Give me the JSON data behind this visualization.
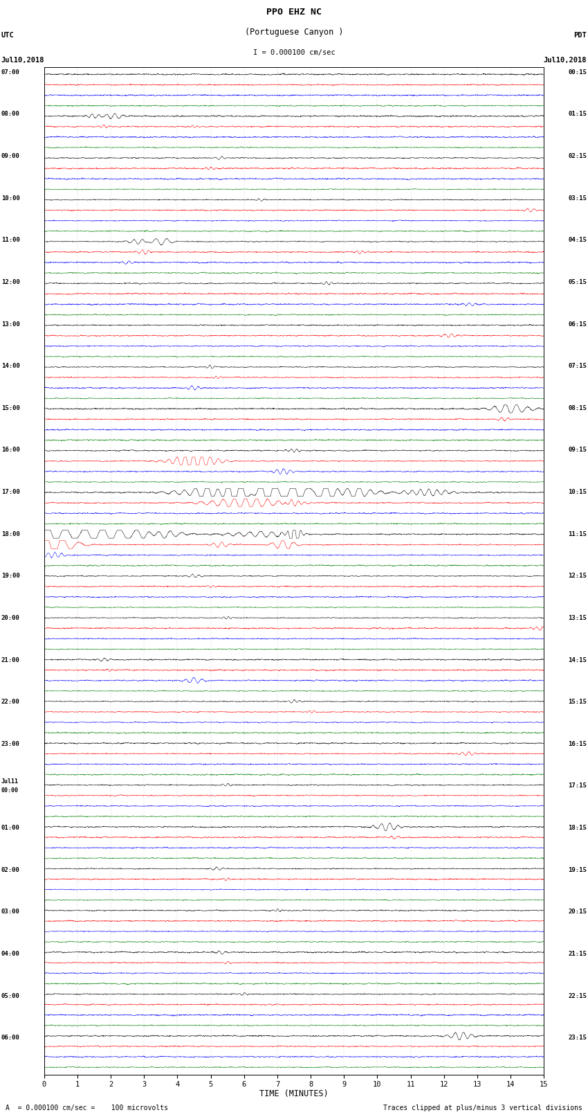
{
  "title_line1": "PPO EHZ NC",
  "title_line2": "(Portuguese Canyon )",
  "title_line3": "I = 0.000100 cm/sec",
  "left_label_line1": "UTC",
  "left_label_line2": "Jul10,2018",
  "right_label_line1": "PDT",
  "right_label_line2": "Jul10,2018",
  "xlabel": "TIME (MINUTES)",
  "footer_left": "A  = 0.000100 cm/sec =    100 microvolts",
  "footer_right": "Traces clipped at plus/minus 3 vertical divisions",
  "xmin": 0,
  "xmax": 15,
  "xticks": [
    0,
    1,
    2,
    3,
    4,
    5,
    6,
    7,
    8,
    9,
    10,
    11,
    12,
    13,
    14,
    15
  ],
  "bg_color": "white",
  "noise_base": 0.032,
  "amplitude_scale": 0.38,
  "seed": 12345,
  "num_rows": 96,
  "colors_cycle": [
    "black",
    "red",
    "blue",
    "green"
  ],
  "left_times": [
    "07:00",
    "",
    "",
    "",
    "08:00",
    "",
    "",
    "",
    "09:00",
    "",
    "",
    "",
    "10:00",
    "",
    "",
    "",
    "11:00",
    "",
    "",
    "",
    "12:00",
    "",
    "",
    "",
    "13:00",
    "",
    "",
    "",
    "14:00",
    "",
    "",
    "",
    "15:00",
    "",
    "",
    "",
    "16:00",
    "",
    "",
    "",
    "17:00",
    "",
    "",
    "",
    "18:00",
    "",
    "",
    "",
    "19:00",
    "",
    "",
    "",
    "20:00",
    "",
    "",
    "",
    "21:00",
    "",
    "",
    "",
    "22:00",
    "",
    "",
    "",
    "23:00",
    "",
    "",
    "",
    "Jul11\n00:00",
    "",
    "",
    "",
    "01:00",
    "",
    "",
    "",
    "02:00",
    "",
    "",
    "",
    "03:00",
    "",
    "",
    "",
    "04:00",
    "",
    "",
    "",
    "05:00",
    "",
    "",
    "",
    "06:00",
    "",
    "",
    ""
  ],
  "right_times": [
    "00:15",
    "",
    "",
    "",
    "01:15",
    "",
    "",
    "",
    "02:15",
    "",
    "",
    "",
    "03:15",
    "",
    "",
    "",
    "04:15",
    "",
    "",
    "",
    "05:15",
    "",
    "",
    "",
    "06:15",
    "",
    "",
    "",
    "07:15",
    "",
    "",
    "",
    "08:15",
    "",
    "",
    "",
    "09:15",
    "",
    "",
    "",
    "10:15",
    "",
    "",
    "",
    "11:15",
    "",
    "",
    "",
    "12:15",
    "",
    "",
    "",
    "13:15",
    "",
    "",
    "",
    "14:15",
    "",
    "",
    "",
    "15:15",
    "",
    "",
    "",
    "16:15",
    "",
    "",
    "",
    "17:15",
    "",
    "",
    "",
    "18:15",
    "",
    "",
    "",
    "19:15",
    "",
    "",
    "",
    "20:15",
    "",
    "",
    "",
    "21:15",
    "",
    "",
    "",
    "22:15",
    "",
    "",
    "",
    "23:15",
    "",
    "",
    ""
  ],
  "events": [
    {
      "row": 4,
      "t": 1.5,
      "amp": 6,
      "dur": 0.3,
      "freq": 5
    },
    {
      "row": 4,
      "t": 2.1,
      "amp": 8,
      "dur": 0.4,
      "freq": 4
    },
    {
      "row": 5,
      "t": 1.8,
      "amp": 5,
      "dur": 0.2,
      "freq": 6
    },
    {
      "row": 5,
      "t": 4.5,
      "amp": 4,
      "dur": 0.15,
      "freq": 7
    },
    {
      "row": 8,
      "t": 5.3,
      "amp": 5,
      "dur": 0.25,
      "freq": 5
    },
    {
      "row": 9,
      "t": 5.0,
      "amp": 4,
      "dur": 0.2,
      "freq": 6
    },
    {
      "row": 12,
      "t": 6.5,
      "amp": 4,
      "dur": 0.2,
      "freq": 5
    },
    {
      "row": 13,
      "t": 14.6,
      "amp": 5,
      "dur": 0.3,
      "freq": 5
    },
    {
      "row": 16,
      "t": 2.8,
      "amp": 7,
      "dur": 0.4,
      "freq": 4
    },
    {
      "row": 16,
      "t": 3.5,
      "amp": 10,
      "dur": 0.5,
      "freq": 3
    },
    {
      "row": 17,
      "t": 3.0,
      "amp": 6,
      "dur": 0.3,
      "freq": 5
    },
    {
      "row": 17,
      "t": 9.5,
      "amp": 5,
      "dur": 0.25,
      "freq": 6
    },
    {
      "row": 18,
      "t": 2.5,
      "amp": 5,
      "dur": 0.3,
      "freq": 5
    },
    {
      "row": 20,
      "t": 8.5,
      "amp": 5,
      "dur": 0.25,
      "freq": 6
    },
    {
      "row": 22,
      "t": 12.8,
      "amp": 5,
      "dur": 0.3,
      "freq": 5
    },
    {
      "row": 25,
      "t": 12.2,
      "amp": 6,
      "dur": 0.35,
      "freq": 5
    },
    {
      "row": 28,
      "t": 5.0,
      "amp": 5,
      "dur": 0.2,
      "freq": 6
    },
    {
      "row": 29,
      "t": 5.2,
      "amp": 4,
      "dur": 0.2,
      "freq": 7
    },
    {
      "row": 30,
      "t": 4.5,
      "amp": 6,
      "dur": 0.3,
      "freq": 5
    },
    {
      "row": 32,
      "t": 14.0,
      "amp": 15,
      "dur": 0.8,
      "freq": 3
    },
    {
      "row": 33,
      "t": 13.8,
      "amp": 5,
      "dur": 0.3,
      "freq": 5
    },
    {
      "row": 36,
      "t": 7.5,
      "amp": 5,
      "dur": 0.3,
      "freq": 6
    },
    {
      "row": 37,
      "t": 4.5,
      "amp": 20,
      "dur": 1.0,
      "freq": 4
    },
    {
      "row": 38,
      "t": 7.2,
      "amp": 8,
      "dur": 0.4,
      "freq": 5
    },
    {
      "row": 40,
      "t": 5.5,
      "amp": 20,
      "dur": 2.0,
      "freq": 3
    },
    {
      "row": 40,
      "t": 7.0,
      "amp": 25,
      "dur": 2.5,
      "freq": 2
    },
    {
      "row": 40,
      "t": 9.0,
      "amp": 15,
      "dur": 1.5,
      "freq": 3
    },
    {
      "row": 40,
      "t": 11.5,
      "amp": 10,
      "dur": 1.0,
      "freq": 4
    },
    {
      "row": 41,
      "t": 6.0,
      "amp": 15,
      "dur": 1.5,
      "freq": 3
    },
    {
      "row": 41,
      "t": 7.5,
      "amp": 8,
      "dur": 0.5,
      "freq": 5
    },
    {
      "row": 44,
      "t": 0.3,
      "amp": 30,
      "dur": 1.5,
      "freq": 2
    },
    {
      "row": 44,
      "t": 1.5,
      "amp": 25,
      "dur": 2.0,
      "freq": 2
    },
    {
      "row": 44,
      "t": 3.5,
      "amp": 10,
      "dur": 1.0,
      "freq": 3
    },
    {
      "row": 44,
      "t": 6.5,
      "amp": 8,
      "dur": 1.5,
      "freq": 3
    },
    {
      "row": 44,
      "t": 7.5,
      "amp": 30,
      "dur": 0.3,
      "freq": 5
    },
    {
      "row": 45,
      "t": 0.2,
      "amp": 30,
      "dur": 1.0,
      "freq": 2
    },
    {
      "row": 45,
      "t": 5.3,
      "amp": 8,
      "dur": 0.4,
      "freq": 4
    },
    {
      "row": 45,
      "t": 7.2,
      "amp": 15,
      "dur": 0.5,
      "freq": 3
    },
    {
      "row": 46,
      "t": 0.3,
      "amp": 8,
      "dur": 0.5,
      "freq": 5
    },
    {
      "row": 48,
      "t": 4.5,
      "amp": 5,
      "dur": 0.3,
      "freq": 5
    },
    {
      "row": 49,
      "t": 5.0,
      "amp": 4,
      "dur": 0.2,
      "freq": 6
    },
    {
      "row": 52,
      "t": 5.5,
      "amp": 4,
      "dur": 0.2,
      "freq": 7
    },
    {
      "row": 53,
      "t": 14.9,
      "amp": 6,
      "dur": 0.3,
      "freq": 5
    },
    {
      "row": 56,
      "t": 1.8,
      "amp": 5,
      "dur": 0.3,
      "freq": 5
    },
    {
      "row": 57,
      "t": 2.0,
      "amp": 4,
      "dur": 0.2,
      "freq": 6
    },
    {
      "row": 58,
      "t": 4.5,
      "amp": 8,
      "dur": 0.4,
      "freq": 4
    },
    {
      "row": 60,
      "t": 7.5,
      "amp": 5,
      "dur": 0.25,
      "freq": 6
    },
    {
      "row": 61,
      "t": 8.0,
      "amp": 4,
      "dur": 0.2,
      "freq": 7
    },
    {
      "row": 65,
      "t": 12.7,
      "amp": 6,
      "dur": 0.35,
      "freq": 5
    },
    {
      "row": 68,
      "t": 5.5,
      "amp": 4,
      "dur": 0.2,
      "freq": 6
    },
    {
      "row": 72,
      "t": 10.3,
      "amp": 12,
      "dur": 0.5,
      "freq": 4
    },
    {
      "row": 73,
      "t": 10.5,
      "amp": 5,
      "dur": 0.25,
      "freq": 5
    },
    {
      "row": 76,
      "t": 5.2,
      "amp": 5,
      "dur": 0.3,
      "freq": 5
    },
    {
      "row": 77,
      "t": 5.5,
      "amp": 4,
      "dur": 0.2,
      "freq": 6
    },
    {
      "row": 80,
      "t": 7.0,
      "amp": 4,
      "dur": 0.2,
      "freq": 7
    },
    {
      "row": 84,
      "t": 5.3,
      "amp": 5,
      "dur": 0.3,
      "freq": 5
    },
    {
      "row": 85,
      "t": 5.5,
      "amp": 4,
      "dur": 0.2,
      "freq": 6
    },
    {
      "row": 88,
      "t": 6.0,
      "amp": 4,
      "dur": 0.2,
      "freq": 6
    },
    {
      "row": 92,
      "t": 12.5,
      "amp": 12,
      "dur": 0.5,
      "freq": 4
    }
  ]
}
